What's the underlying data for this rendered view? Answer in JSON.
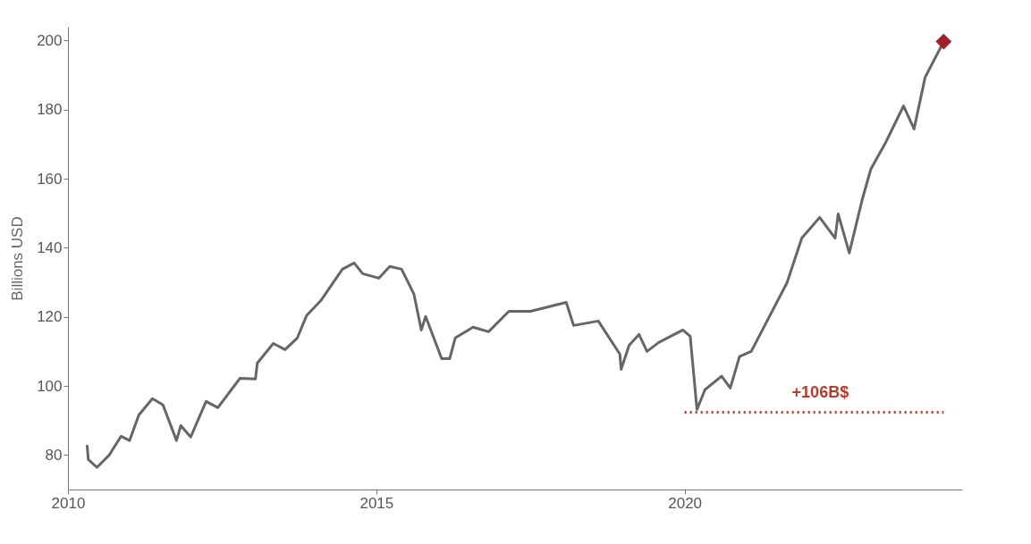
{
  "chart_data": {
    "type": "line",
    "ylabel": "Billions USD",
    "xlim": [
      2010,
      2024.5
    ],
    "xticks": [
      2010,
      2015,
      2020
    ],
    "ylim": [
      70,
      204
    ],
    "yticks": [
      80,
      100,
      120,
      140,
      160,
      180,
      200
    ],
    "grid": false,
    "series": [
      {
        "color": "#666666",
        "line_style": "solid",
        "marker": "none",
        "x": [
          2010.31,
          2010.33,
          2010.47,
          2010.67,
          2010.86,
          2011.0,
          2011.15,
          2011.37,
          2011.54,
          2011.76,
          2011.83,
          2011.99,
          2012.24,
          2012.43,
          2012.79,
          2013.04,
          2013.07,
          2013.33,
          2013.52,
          2013.72,
          2013.87,
          2014.1,
          2014.45,
          2014.64,
          2014.78,
          2015.04,
          2015.22,
          2015.41,
          2015.61,
          2015.73,
          2015.8,
          2016.06,
          2016.19,
          2016.28,
          2016.57,
          2016.82,
          2017.15,
          2017.5,
          2018.08,
          2018.2,
          2018.6,
          2018.95,
          2018.97,
          2019.1,
          2019.26,
          2019.39,
          2019.58,
          2019.97,
          2020.09,
          2020.2,
          2020.33,
          2020.6,
          2020.74,
          2020.89,
          2021.08,
          2021.66,
          2021.9,
          2022.19,
          2022.44,
          2022.49,
          2022.67,
          2022.88,
          2023.02,
          2023.26,
          2023.55,
          2023.72,
          2023.9,
          2024.2
        ],
        "values": [
          82.9,
          78.7,
          76.4,
          80,
          85.4,
          84.2,
          91.6,
          96.3,
          94.5,
          84.2,
          88.5,
          85.2,
          95.5,
          93.7,
          102.2,
          102,
          106.6,
          112.3,
          110.5,
          113.9,
          120.4,
          124.7,
          133.8,
          135.6,
          132.5,
          131.2,
          134.6,
          133.8,
          126.6,
          116.2,
          120.1,
          107.9,
          107.9,
          113.9,
          117,
          115.7,
          121.6,
          121.6,
          124.2,
          117.5,
          118.8,
          109.2,
          104.8,
          111.8,
          114.9,
          110,
          112.6,
          116.2,
          114.4,
          93.2,
          98.9,
          102.8,
          99.4,
          108.5,
          110,
          129.9,
          142.8,
          148.8,
          142.8,
          149.8,
          138.5,
          154,
          162.8,
          170.5,
          181.1,
          174.4,
          189.4,
          199.7
        ]
      },
      {
        "type": "line",
        "color": "#c0392b",
        "line_style": "dotted",
        "marker": "none",
        "x": [
          2020.0,
          2024.2
        ],
        "values": [
          92.4,
          92.4
        ]
      },
      {
        "type": "scatter",
        "color": "#a3202a",
        "marker": "diamond",
        "x": [
          2024.2
        ],
        "values": [
          199.7
        ]
      }
    ],
    "annotations": [
      {
        "text": "+106B$",
        "x": 2022.2,
        "y": 92.4
      }
    ]
  }
}
